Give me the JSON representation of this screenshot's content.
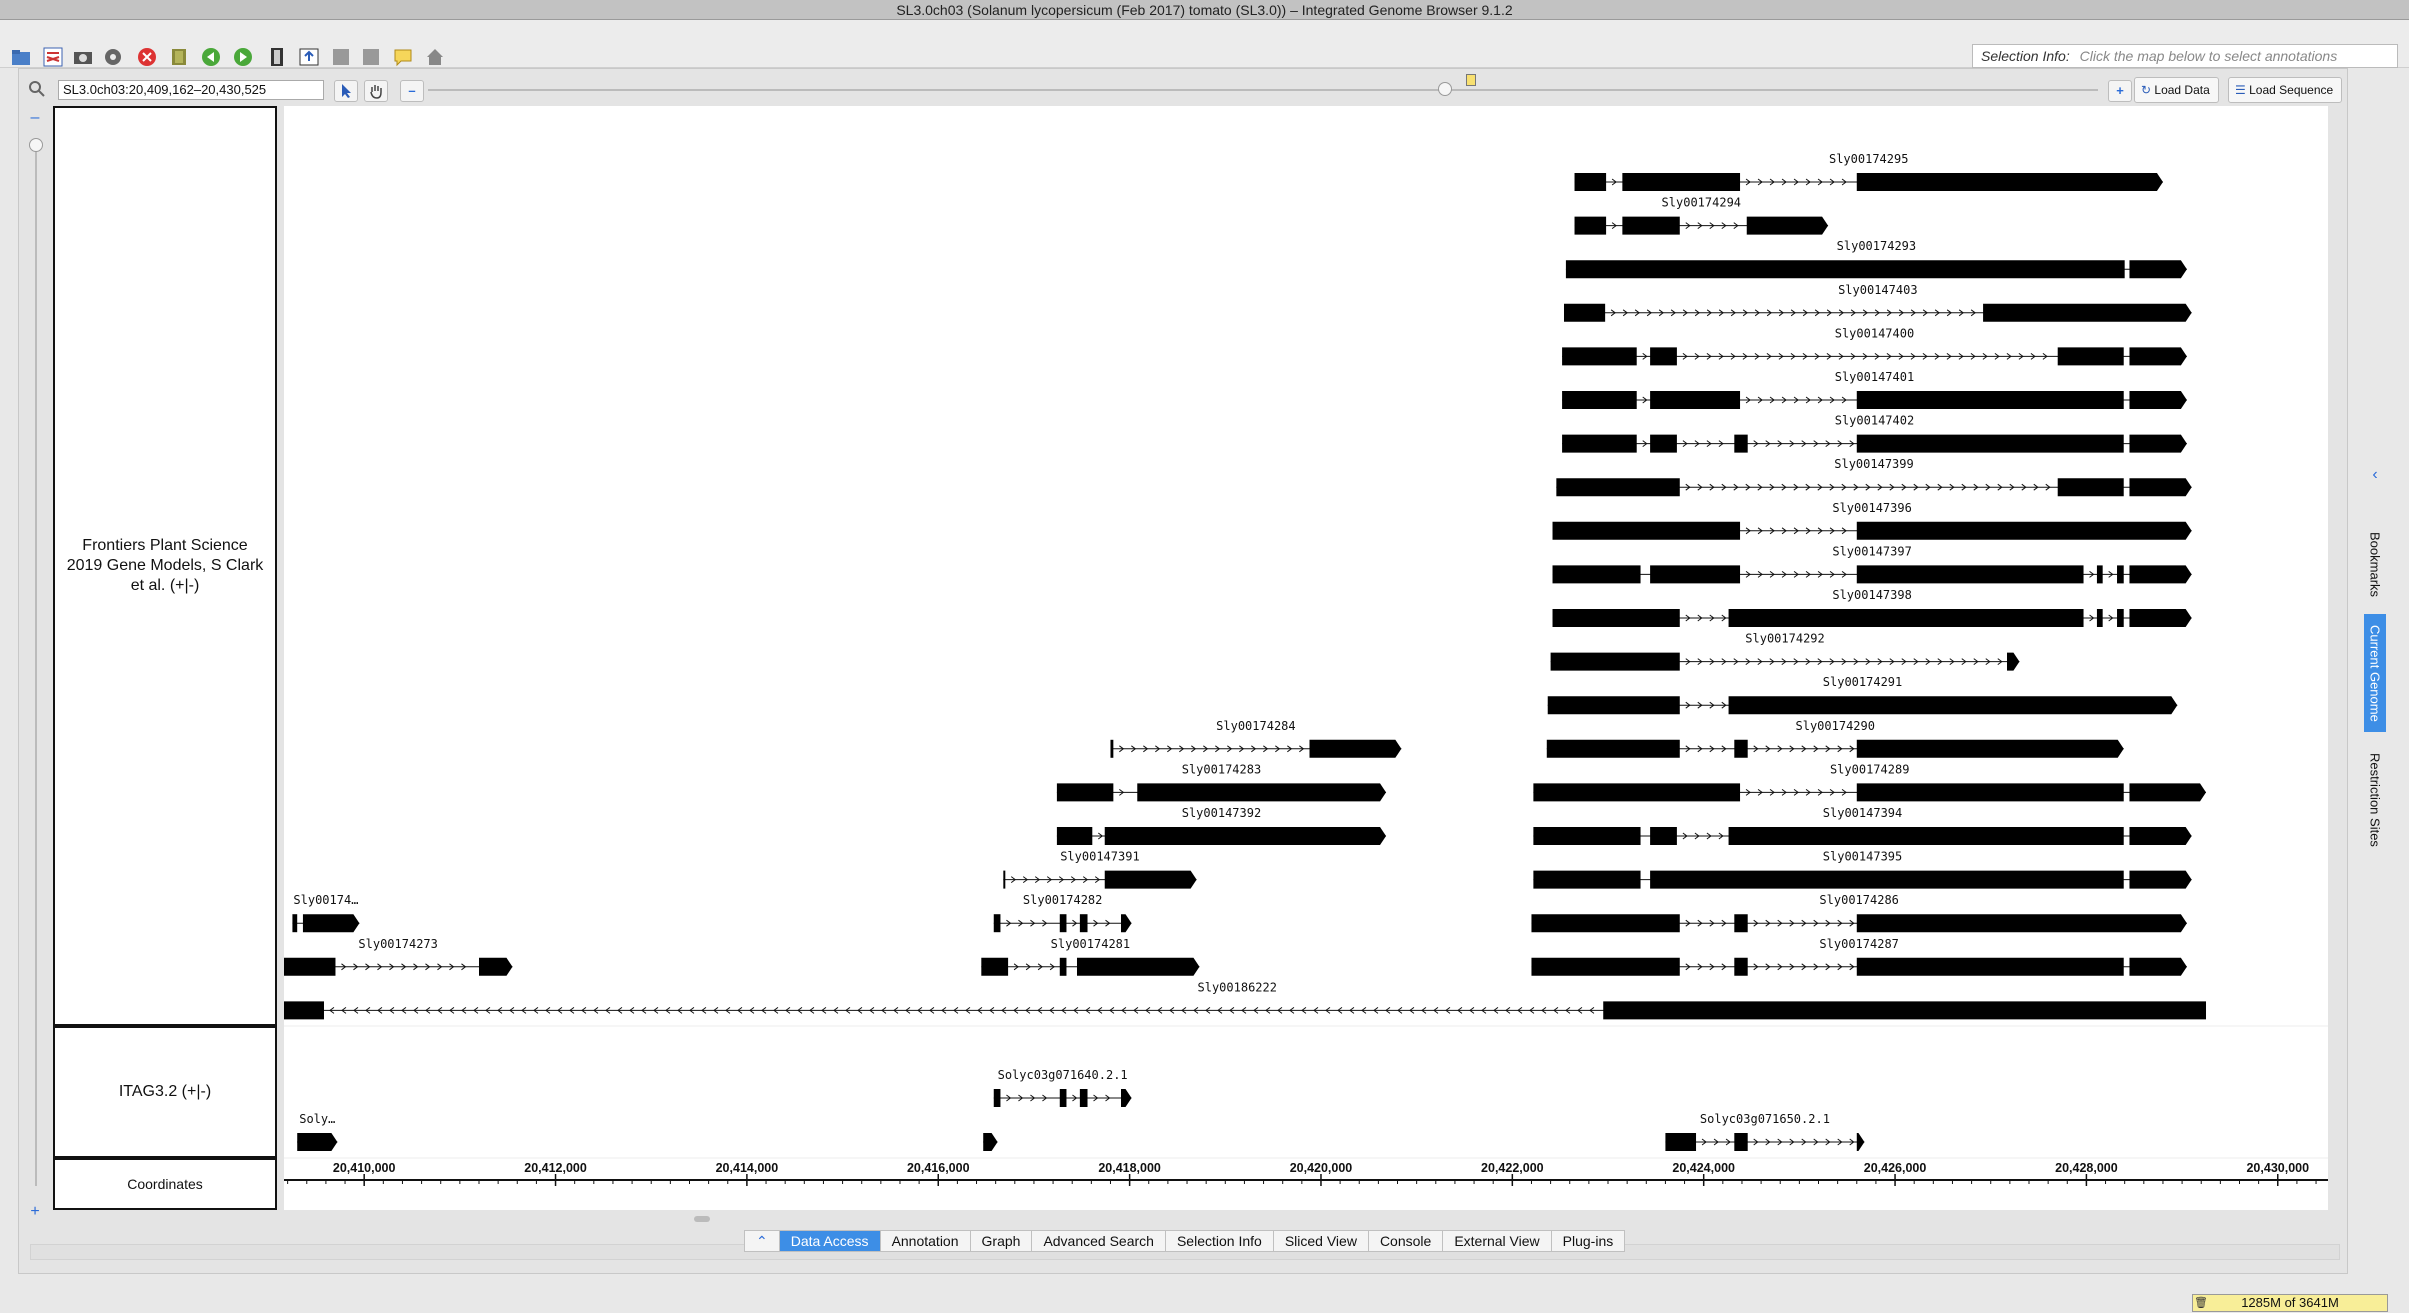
{
  "window": {
    "title": "SL3.0ch03  (Solanum lycopersicum (Feb 2017) tomato (SL3.0)) – Integrated Genome Browser 9.1.2"
  },
  "toolbar": {
    "icons": [
      "open-folder-icon",
      "share-icon",
      "camera-icon",
      "gear-icon",
      "stop-icon",
      "bookmark-book-icon",
      "back-arrow-icon",
      "forward-arrow-icon",
      "film-icon",
      "export-icon",
      "grey-square-icon",
      "grey-square-icon",
      "speech-bubble-icon",
      "home-icon"
    ],
    "selection_info_label": "Selection Info:",
    "selection_info_placeholder": "Click the map below to select annotations"
  },
  "nav": {
    "location": "SL3.0ch03:20,409,162–20,430,525",
    "zoom_out_symbol": "–",
    "zoom_in_symbol": "+",
    "load_data_label": "Load Data",
    "load_sequence_label": "Load Sequence"
  },
  "tracks": {
    "frontiers_label": "Frontiers Plant Science 2019 Gene Models, S Clark et al. (+|-)",
    "itag_label": "ITAG3.2 (+|-)",
    "coordinates_label": "Coordinates"
  },
  "genome_view": {
    "start": 20409162,
    "end": 20430525,
    "tick_labels": [
      "20,410,000",
      "20,412,000",
      "20,414,000",
      "20,416,000",
      "20,418,000",
      "20,420,000",
      "20,422,000",
      "20,424,000",
      "20,426,000",
      "20,428,000",
      "20,430,000"
    ],
    "tick_values": [
      20410000,
      20412000,
      20414000,
      20416000,
      20418000,
      20420000,
      20422000,
      20424000,
      20426000,
      20428000,
      20430000
    ],
    "frontiers_genes": [
      {
        "name": "Sly00174295",
        "row": 0,
        "dir": "+",
        "exons": [
          [
            20422650,
            20422980
          ],
          [
            20423150,
            20424380
          ],
          [
            20425600,
            20428800
          ]
        ]
      },
      {
        "name": "Sly00174294",
        "row": 1,
        "dir": "+",
        "exons": [
          [
            20422650,
            20422980
          ],
          [
            20423150,
            20423750
          ],
          [
            20424450,
            20425300
          ]
        ]
      },
      {
        "name": "Sly00174293",
        "row": 2,
        "dir": "+",
        "exons": [
          [
            20422560,
            20428400
          ],
          [
            20428450,
            20429050
          ]
        ]
      },
      {
        "name": "Sly00147403",
        "row": 3,
        "dir": "+",
        "exons": [
          [
            20422540,
            20422970
          ],
          [
            20426920,
            20429100
          ]
        ]
      },
      {
        "name": "Sly00147400",
        "row": 4,
        "dir": "+",
        "exons": [
          [
            20422520,
            20423300
          ],
          [
            20423440,
            20423720
          ],
          [
            20427700,
            20428390
          ],
          [
            20428450,
            20429050
          ]
        ]
      },
      {
        "name": "Sly00147401",
        "row": 5,
        "dir": "+",
        "exons": [
          [
            20422520,
            20423300
          ],
          [
            20423440,
            20424380
          ],
          [
            20425600,
            20428390
          ],
          [
            20428450,
            20429050
          ]
        ]
      },
      {
        "name": "Sly00147402",
        "row": 6,
        "dir": "+",
        "exons": [
          [
            20422520,
            20423300
          ],
          [
            20423440,
            20423720
          ],
          [
            20424320,
            20424460
          ],
          [
            20425600,
            20428390
          ],
          [
            20428450,
            20429050
          ]
        ]
      },
      {
        "name": "Sly00147399",
        "row": 7,
        "dir": "+",
        "exons": [
          [
            20422460,
            20423750
          ],
          [
            20427700,
            20428390
          ],
          [
            20428450,
            20429100
          ]
        ]
      },
      {
        "name": "Sly00147396",
        "row": 8,
        "dir": "+",
        "exons": [
          [
            20422420,
            20424380
          ],
          [
            20425600,
            20429100
          ]
        ]
      },
      {
        "name": "Sly00147397",
        "row": 9,
        "dir": "+",
        "exons": [
          [
            20422420,
            20423340
          ],
          [
            20423440,
            20424380
          ],
          [
            20425600,
            20427970
          ],
          [
            20428110,
            20428170
          ],
          [
            20428320,
            20428390
          ],
          [
            20428450,
            20429100
          ]
        ]
      },
      {
        "name": "Sly00147398",
        "row": 10,
        "dir": "+",
        "exons": [
          [
            20422420,
            20423750
          ],
          [
            20424260,
            20427970
          ],
          [
            20428110,
            20428170
          ],
          [
            20428320,
            20428390
          ],
          [
            20428450,
            20429100
          ]
        ]
      },
      {
        "name": "Sly00174292",
        "row": 11,
        "dir": "+",
        "exons": [
          [
            20422400,
            20423750
          ],
          [
            20427170,
            20427300
          ]
        ]
      },
      {
        "name": "Sly00174291",
        "row": 12,
        "dir": "+",
        "exons": [
          [
            20422370,
            20423750
          ],
          [
            20424260,
            20428950
          ]
        ]
      },
      {
        "name": "Sly00174290",
        "row": 13,
        "dir": "+",
        "exons": [
          [
            20422360,
            20423750
          ],
          [
            20424320,
            20424460
          ],
          [
            20425600,
            20428390
          ]
        ]
      },
      {
        "name": "Sly00174284",
        "row": 13,
        "dir": "+",
        "exons": [
          [
            20417800,
            20417830
          ],
          [
            20419880,
            20420840
          ]
        ]
      },
      {
        "name": "Sly00174289",
        "row": 14,
        "dir": "+",
        "exons": [
          [
            20422220,
            20424380
          ],
          [
            20425600,
            20428390
          ],
          [
            20428450,
            20429250
          ]
        ]
      },
      {
        "name": "Sly00174283",
        "row": 14,
        "dir": "+",
        "exons": [
          [
            20417240,
            20417830
          ],
          [
            20418080,
            20420680
          ]
        ]
      },
      {
        "name": "Sly00147394",
        "row": 15,
        "dir": "+",
        "exons": [
          [
            20422220,
            20423340
          ],
          [
            20423440,
            20423720
          ],
          [
            20424260,
            20428390
          ],
          [
            20428450,
            20429100
          ]
        ]
      },
      {
        "name": "Sly00147392",
        "row": 15,
        "dir": "+",
        "exons": [
          [
            20417240,
            20417610
          ],
          [
            20417740,
            20420680
          ]
        ]
      },
      {
        "name": "Sly00147395",
        "row": 16,
        "dir": "+",
        "exons": [
          [
            20422220,
            20423340
          ],
          [
            20423440,
            20428390
          ],
          [
            20428450,
            20429100
          ]
        ]
      },
      {
        "name": "Sly00147391",
        "row": 16,
        "dir": "+",
        "exons": [
          [
            20416680,
            20416700
          ],
          [
            20417740,
            20418700
          ]
        ]
      },
      {
        "name": "Sly00174286",
        "row": 17,
        "dir": "+",
        "exons": [
          [
            20422200,
            20423750
          ],
          [
            20424320,
            20424460
          ],
          [
            20425600,
            20429050
          ]
        ]
      },
      {
        "name": "Sly00174282",
        "row": 17,
        "dir": "+",
        "exons": [
          [
            20416580,
            20416650
          ],
          [
            20417270,
            20417340
          ],
          [
            20417480,
            20417560
          ],
          [
            20417910,
            20418020
          ]
        ]
      },
      {
        "name": "Sly00174…",
        "row": 17,
        "dir": "+",
        "exons": [
          [
            20409250,
            20409300
          ],
          [
            20409360,
            20409950
          ]
        ]
      },
      {
        "name": "Sly00174287",
        "row": 18,
        "dir": "+",
        "exons": [
          [
            20422200,
            20423750
          ],
          [
            20424320,
            20424460
          ],
          [
            20425600,
            20428390
          ],
          [
            20428450,
            20429050
          ]
        ]
      },
      {
        "name": "Sly00174281",
        "row": 18,
        "dir": "+",
        "exons": [
          [
            20416450,
            20416730
          ],
          [
            20417270,
            20417340
          ],
          [
            20417450,
            20418730
          ]
        ]
      },
      {
        "name": "Sly00174273",
        "row": 18,
        "dir": "+",
        "exons": [
          [
            20409160,
            20409700
          ],
          [
            20411200,
            20411550
          ]
        ]
      },
      {
        "name": "Sly00186222",
        "row": 19,
        "dir": "-",
        "exons": [
          [
            20409000,
            20409580
          ],
          [
            20422950,
            20429250
          ]
        ]
      }
    ],
    "itag_genes": [
      {
        "name": "Solyc03g071640.2.1",
        "row": 0,
        "dir": "+",
        "exons": [
          [
            20416580,
            20416650
          ],
          [
            20417270,
            20417340
          ],
          [
            20417480,
            20417560
          ],
          [
            20417910,
            20418020
          ]
        ]
      },
      {
        "name": "Solyc03g071650.2.1",
        "row": 1,
        "dir": "+",
        "exons": [
          [
            20423600,
            20423920
          ],
          [
            20424320,
            20424460
          ],
          [
            20425600,
            20425680
          ]
        ]
      },
      {
        "name": "Soly…",
        "row": 1,
        "dir": "+",
        "exons": [
          [
            20409300,
            20409720
          ]
        ]
      },
      {
        "name": "",
        "row": 1,
        "dir": "+",
        "exons": [
          [
            20416470,
            20416620
          ]
        ]
      }
    ]
  },
  "bottom_tabs": [
    {
      "label": "Data Access",
      "active": true
    },
    {
      "label": "Annotation",
      "active": false
    },
    {
      "label": "Graph",
      "active": false
    },
    {
      "label": "Advanced Search",
      "active": false
    },
    {
      "label": "Selection Info",
      "active": false
    },
    {
      "label": "Sliced View",
      "active": false
    },
    {
      "label": "Console",
      "active": false
    },
    {
      "label": "External View",
      "active": false
    },
    {
      "label": "Plug-ins",
      "active": false
    }
  ],
  "side_tabs": {
    "bookmarks": "Bookmarks",
    "current_genome": "Current Genome",
    "restriction_sites": "Restriction Sites"
  },
  "status": {
    "memory": "1285M of 3641M"
  }
}
